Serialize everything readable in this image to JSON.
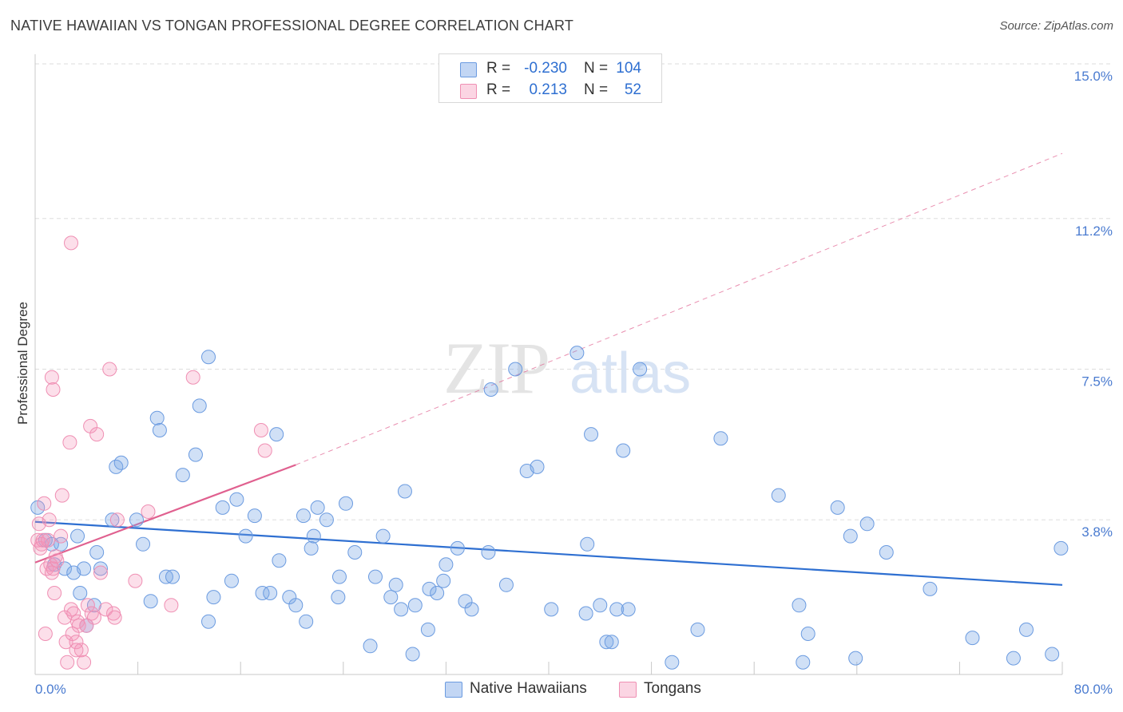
{
  "title": "NATIVE HAWAIIAN VS TONGAN PROFESSIONAL DEGREE CORRELATION CHART",
  "source": "Source: ZipAtlas.com",
  "watermark": {
    "zip": "ZIP",
    "atlas": "atlas"
  },
  "colors": {
    "blue_fill": "rgba(120,165,230,0.35)",
    "blue_stroke": "#6b9be0",
    "blue_line": "#2e6fd1",
    "pink_fill": "rgba(245,150,185,0.30)",
    "pink_stroke": "#ef8fb3",
    "pink_line": "#e0608f",
    "grid": "#dddddd",
    "tick_text": "#4a7bd0"
  },
  "legend_stats": [
    {
      "r_label": "R =",
      "r_value": "-0.230",
      "n_label": "N =",
      "n_value": "104"
    },
    {
      "r_label": "R =",
      "r_value": "0.213",
      "n_label": "N =",
      "n_value": "52"
    }
  ],
  "chart_data": {
    "type": "scatter",
    "title": "NATIVE HAWAIIAN VS TONGAN PROFESSIONAL DEGREE CORRELATION CHART",
    "xlabel": "",
    "ylabel": "Professional Degree",
    "xlim": [
      0,
      80
    ],
    "ylim": [
      0,
      15
    ],
    "x_tick_labels": [
      "0.0%",
      "80.0%"
    ],
    "y_ticks": [
      3.8,
      7.5,
      11.2,
      15.0
    ],
    "y_tick_labels": [
      "3.8%",
      "7.5%",
      "11.2%",
      "15.0%"
    ],
    "grid": true,
    "legend_position": "top-center",
    "series": [
      {
        "name": "Native Hawaiians",
        "r": -0.23,
        "n": 104,
        "trend": {
          "x": [
            0,
            80
          ],
          "y": [
            3.75,
            2.2
          ],
          "style": "solid"
        },
        "points": [
          [
            0.2,
            4.1
          ],
          [
            0.8,
            3.3
          ],
          [
            1.3,
            3.2
          ],
          [
            1.5,
            2.7
          ],
          [
            2.3,
            2.6
          ],
          [
            3.0,
            2.5
          ],
          [
            3.3,
            3.4
          ],
          [
            3.5,
            2.0
          ],
          [
            3.8,
            2.6
          ],
          [
            4.6,
            1.7
          ],
          [
            4.8,
            3.0
          ],
          [
            4.0,
            1.2
          ],
          [
            5.1,
            2.6
          ],
          [
            6.3,
            5.1
          ],
          [
            6.7,
            5.2
          ],
          [
            7.9,
            3.8
          ],
          [
            8.4,
            3.2
          ],
          [
            9.0,
            1.8
          ],
          [
            9.5,
            6.3
          ],
          [
            9.7,
            6.0
          ],
          [
            10.2,
            2.4
          ],
          [
            10.7,
            2.4
          ],
          [
            11.5,
            4.9
          ],
          [
            12.5,
            5.4
          ],
          [
            12.8,
            6.6
          ],
          [
            13.5,
            7.8
          ],
          [
            13.5,
            1.3
          ],
          [
            13.9,
            1.9
          ],
          [
            14.6,
            4.1
          ],
          [
            15.3,
            2.3
          ],
          [
            15.7,
            4.3
          ],
          [
            16.4,
            3.4
          ],
          [
            17.1,
            3.9
          ],
          [
            17.7,
            2.0
          ],
          [
            18.3,
            2.0
          ],
          [
            18.8,
            5.9
          ],
          [
            19.0,
            2.8
          ],
          [
            19.8,
            1.9
          ],
          [
            20.3,
            1.7
          ],
          [
            20.9,
            3.9
          ],
          [
            21.1,
            1.3
          ],
          [
            21.5,
            3.1
          ],
          [
            21.7,
            3.4
          ],
          [
            22.0,
            4.1
          ],
          [
            22.7,
            3.8
          ],
          [
            23.7,
            2.4
          ],
          [
            23.6,
            1.9
          ],
          [
            24.2,
            4.2
          ],
          [
            24.9,
            3.0
          ],
          [
            26.1,
            0.7
          ],
          [
            26.5,
            2.4
          ],
          [
            27.1,
            3.4
          ],
          [
            27.7,
            1.9
          ],
          [
            28.1,
            2.2
          ],
          [
            28.5,
            1.6
          ],
          [
            28.8,
            4.5
          ],
          [
            29.4,
            0.5
          ],
          [
            29.6,
            1.7
          ],
          [
            30.6,
            1.1
          ],
          [
            30.7,
            2.1
          ],
          [
            31.3,
            2.0
          ],
          [
            32.0,
            2.7
          ],
          [
            31.8,
            2.3
          ],
          [
            32.9,
            3.1
          ],
          [
            33.5,
            1.8
          ],
          [
            34.0,
            1.6
          ],
          [
            35.5,
            7.0
          ],
          [
            35.3,
            3.0
          ],
          [
            36.7,
            2.2
          ],
          [
            37.4,
            7.5
          ],
          [
            38.3,
            5.0
          ],
          [
            39.1,
            5.1
          ],
          [
            40.2,
            1.6
          ],
          [
            42.2,
            7.9
          ],
          [
            42.9,
            1.5
          ],
          [
            43.0,
            3.2
          ],
          [
            43.3,
            5.9
          ],
          [
            44.0,
            1.7
          ],
          [
            44.5,
            0.8
          ],
          [
            44.9,
            0.8
          ],
          [
            45.3,
            1.6
          ],
          [
            45.8,
            5.5
          ],
          [
            46.2,
            1.6
          ],
          [
            47.1,
            7.5
          ],
          [
            49.6,
            0.3
          ],
          [
            51.6,
            1.1
          ],
          [
            53.4,
            5.8
          ],
          [
            57.9,
            4.4
          ],
          [
            59.5,
            1.7
          ],
          [
            59.8,
            0.3
          ],
          [
            60.2,
            1.0
          ],
          [
            62.5,
            4.1
          ],
          [
            63.5,
            3.4
          ],
          [
            63.9,
            0.4
          ],
          [
            64.8,
            3.7
          ],
          [
            66.3,
            3.0
          ],
          [
            69.7,
            2.1
          ],
          [
            73.0,
            0.9
          ],
          [
            76.2,
            0.4
          ],
          [
            77.2,
            1.1
          ],
          [
            79.2,
            0.5
          ],
          [
            79.9,
            3.1
          ],
          [
            2.0,
            3.2
          ],
          [
            6.0,
            3.8
          ]
        ]
      },
      {
        "name": "Tongans",
        "r": 0.213,
        "n": 52,
        "trend": {
          "x": [
            0,
            20.3
          ],
          "y": [
            2.75,
            5.15
          ],
          "style": "solid",
          "extension": {
            "x": [
              20.3,
              80
            ],
            "y": [
              5.15,
              12.8
            ],
            "style": "dashed"
          }
        },
        "points": [
          [
            0.2,
            3.3
          ],
          [
            0.3,
            3.7
          ],
          [
            0.4,
            3.1
          ],
          [
            0.5,
            3.2
          ],
          [
            0.6,
            3.3
          ],
          [
            0.7,
            4.2
          ],
          [
            0.9,
            2.6
          ],
          [
            1.0,
            3.3
          ],
          [
            1.1,
            3.8
          ],
          [
            1.2,
            2.7
          ],
          [
            1.3,
            2.5
          ],
          [
            1.4,
            2.6
          ],
          [
            1.5,
            2.0
          ],
          [
            1.6,
            2.9
          ],
          [
            1.7,
            2.8
          ],
          [
            2.0,
            3.4
          ],
          [
            2.1,
            4.4
          ],
          [
            2.3,
            1.4
          ],
          [
            2.4,
            0.8
          ],
          [
            2.5,
            0.3
          ],
          [
            2.7,
            5.7
          ],
          [
            2.8,
            1.6
          ],
          [
            2.9,
            1.0
          ],
          [
            3.0,
            1.5
          ],
          [
            3.2,
            0.8
          ],
          [
            3.3,
            1.3
          ],
          [
            3.4,
            1.2
          ],
          [
            3.6,
            0.6
          ],
          [
            3.8,
            0.3
          ],
          [
            4.0,
            1.2
          ],
          [
            4.1,
            1.7
          ],
          [
            4.3,
            6.1
          ],
          [
            4.4,
            1.5
          ],
          [
            4.6,
            1.4
          ],
          [
            4.8,
            5.9
          ],
          [
            5.1,
            2.5
          ],
          [
            5.5,
            1.6
          ],
          [
            5.8,
            7.5
          ],
          [
            6.1,
            1.5
          ],
          [
            6.2,
            1.4
          ],
          [
            6.4,
            3.8
          ],
          [
            7.8,
            2.3
          ],
          [
            8.8,
            4.0
          ],
          [
            10.6,
            1.7
          ],
          [
            12.3,
            7.3
          ],
          [
            17.6,
            6.0
          ],
          [
            17.9,
            5.5
          ],
          [
            1.3,
            7.3
          ],
          [
            2.8,
            10.6
          ],
          [
            1.4,
            7.0
          ],
          [
            3.2,
            0.6
          ],
          [
            0.8,
            1.0
          ]
        ]
      }
    ]
  }
}
